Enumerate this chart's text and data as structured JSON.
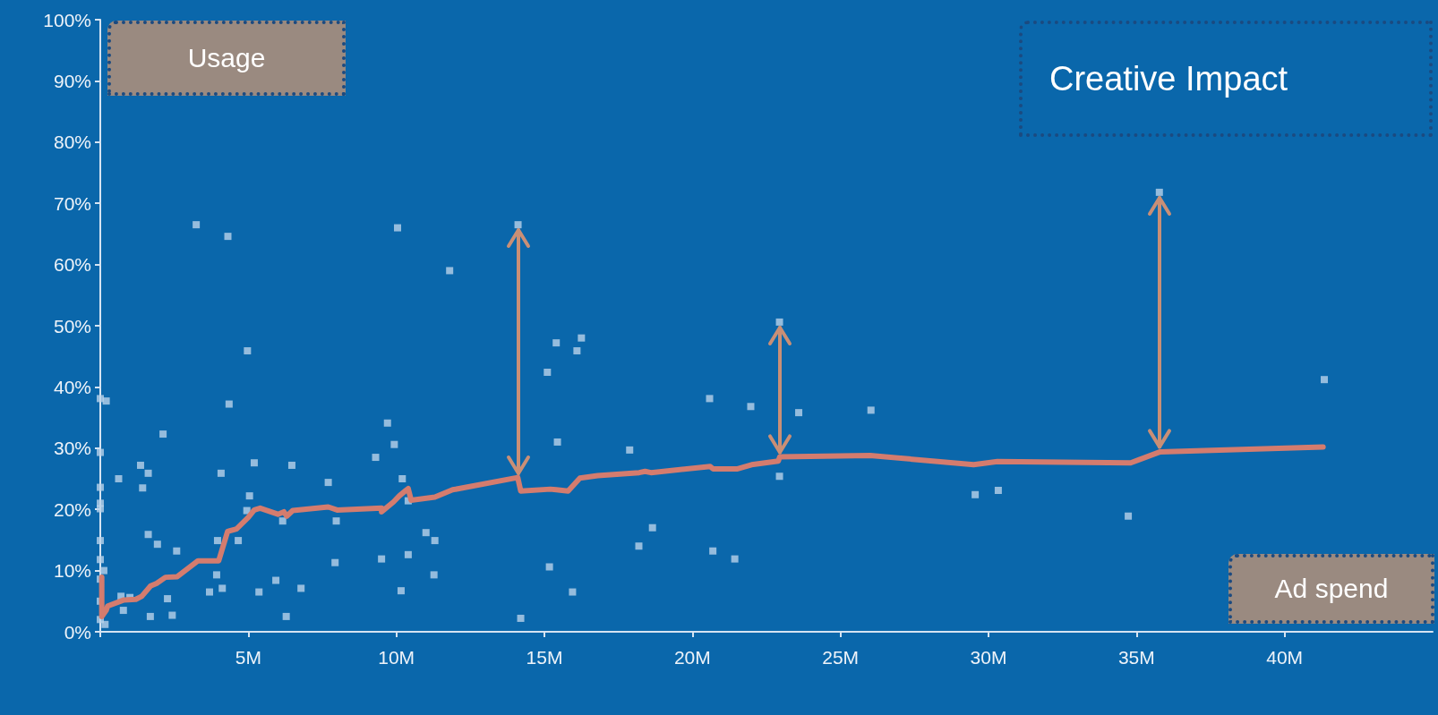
{
  "chart_data": {
    "type": "scatter",
    "xlabel": "Ad spend",
    "ylabel": "Usage",
    "annotations": [
      "Creative Impact"
    ],
    "xlim": [
      0,
      45
    ],
    "ylim": [
      0,
      100
    ],
    "xticks": [
      {
        "value": 0,
        "label": null
      },
      {
        "value": 5,
        "label": "5M"
      },
      {
        "value": 10,
        "label": "10M"
      },
      {
        "value": 15,
        "label": "15M"
      },
      {
        "value": 20,
        "label": "20M"
      },
      {
        "value": 25,
        "label": "25M"
      },
      {
        "value": 30,
        "label": "30M"
      },
      {
        "value": 35,
        "label": "35M"
      },
      {
        "value": 40,
        "label": "40M"
      }
    ],
    "yticks": [
      {
        "value": 0,
        "label": "0%"
      },
      {
        "value": 10,
        "label": "10%"
      },
      {
        "value": 20,
        "label": "20%"
      },
      {
        "value": 30,
        "label": "30%"
      },
      {
        "value": 40,
        "label": "40%"
      },
      {
        "value": 50,
        "label": "50%"
      },
      {
        "value": 60,
        "label": "60%"
      },
      {
        "value": 70,
        "label": "70%"
      },
      {
        "value": 80,
        "label": "80%"
      },
      {
        "value": 90,
        "label": "90%"
      },
      {
        "value": 100,
        "label": "100%"
      }
    ],
    "grid": false,
    "series": [
      {
        "color": "#b8d2ea",
        "marker": "square",
        "x": [
          14.11,
          22.94,
          35.77,
          3.24,
          4.31,
          10.04,
          11.8,
          4.97,
          4.35,
          15.1,
          0,
          0.2,
          2.12,
          9.7,
          9.93,
          9.3,
          0,
          5.2,
          6.47,
          1.36,
          1.62,
          4.08,
          0.62,
          1.43,
          0,
          7.7,
          10.2,
          5.04,
          0,
          0,
          10.4,
          4.95,
          6.16,
          7.97,
          0,
          1.62,
          1.93,
          2.58,
          3.96,
          4.66,
          11.0,
          11.3,
          0,
          0.12,
          10.4,
          7.93,
          9.5,
          3.93,
          11.27,
          15.17,
          3.69,
          4.12,
          5.36,
          5.93,
          6.78,
          10.16,
          0.7,
          1.0,
          2.27,
          0.78,
          1.69,
          2.43,
          6.28,
          14.2,
          0.16,
          0,
          0,
          0,
          15.4,
          16.25,
          16.1,
          15.44,
          17.88,
          20.58,
          21.97,
          23.59,
          26.03,
          22.94,
          15.95,
          18.65,
          18.19,
          20.69,
          21.43,
          29.55,
          30.33,
          41.34,
          34.72
        ],
        "values": [
          66.5,
          50.6,
          71.8,
          66.5,
          64.6,
          66.0,
          59.0,
          45.9,
          37.2,
          42.4,
          38.1,
          37.7,
          32.3,
          34.1,
          30.6,
          28.5,
          29.3,
          27.6,
          27.2,
          27.2,
          25.9,
          25.9,
          25.0,
          23.5,
          23.6,
          24.4,
          25.0,
          22.2,
          21.0,
          20.1,
          21.4,
          19.8,
          18.1,
          18.1,
          14.9,
          15.9,
          14.3,
          13.2,
          14.9,
          14.9,
          16.2,
          14.9,
          11.8,
          10.0,
          12.6,
          11.3,
          11.9,
          9.3,
          9.3,
          10.6,
          6.5,
          7.1,
          6.5,
          8.4,
          7.1,
          6.7,
          5.8,
          5.6,
          5.4,
          3.5,
          2.5,
          2.7,
          2.5,
          2.2,
          1.2,
          8.6,
          5.0,
          2.0,
          47.2,
          48.0,
          45.9,
          31.0,
          29.7,
          38.1,
          36.8,
          35.8,
          36.2,
          25.4,
          6.5,
          17.0,
          14.0,
          13.2,
          11.9,
          22.4,
          23.1,
          41.2,
          18.9
        ]
      },
      {
        "type": "line",
        "color": "#d47c6e",
        "line_style": "solid",
        "marker": "none",
        "x": [
          0.05,
          0.05,
          0.2,
          0.25,
          0.8,
          1.2,
          1.4,
          1.7,
          1.9,
          2.2,
          2.6,
          3.3,
          4.0,
          4.3,
          4.6,
          5.0,
          5.2,
          5.4,
          6.0,
          6.2,
          6.3,
          6.5,
          7.7,
          8.0,
          9.5,
          9.5,
          9.9,
          10.1,
          10.3,
          10.4,
          10.5,
          11.3,
          11.9,
          14.1,
          14.2,
          15.2,
          15.4,
          15.8,
          16.2,
          16.8,
          18.2,
          18.4,
          18.6,
          20.6,
          20.7,
          21.5,
          22.0,
          22.9,
          22.95,
          26.0,
          29.5,
          30.3,
          34.8,
          35.8,
          41.3
        ],
        "values": [
          8.9,
          2.5,
          3.5,
          4.2,
          5.2,
          5.3,
          5.8,
          7.5,
          7.9,
          8.9,
          9.0,
          11.6,
          11.6,
          16.4,
          16.8,
          18.7,
          19.9,
          20.2,
          19.2,
          19.6,
          18.9,
          19.8,
          20.4,
          19.9,
          20.2,
          19.6,
          21.2,
          22.2,
          23.0,
          23.4,
          21.5,
          22.0,
          23.2,
          25.2,
          23.0,
          23.3,
          23.2,
          23.0,
          25.1,
          25.5,
          26.0,
          26.2,
          26.0,
          27.0,
          26.6,
          26.6,
          27.3,
          27.9,
          28.6,
          28.8,
          27.3,
          27.8,
          27.6,
          29.4,
          30.2
        ]
      }
    ]
  }
}
